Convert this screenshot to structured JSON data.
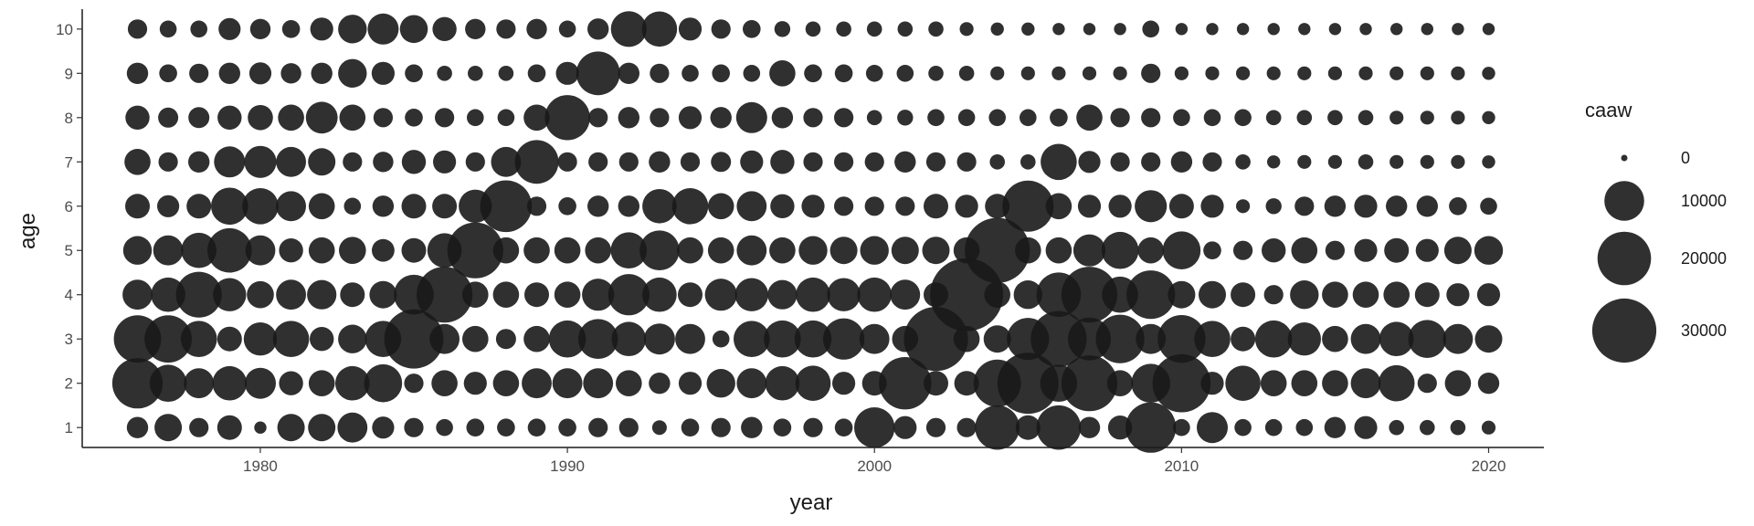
{
  "chart_data": {
    "type": "scatter",
    "subtype": "bubble",
    "xlabel": "year",
    "ylabel": "age",
    "xlim": [
      1974.2,
      2021.8
    ],
    "ylim": [
      0.55,
      10.45
    ],
    "x_ticks": [
      "1980",
      "1990",
      "2000",
      "2010",
      "2020"
    ],
    "y_ticks": [
      "1",
      "2",
      "3",
      "4",
      "5",
      "6",
      "7",
      "8",
      "9",
      "10"
    ],
    "grid": false,
    "point_color": "#1a1a1a",
    "point_alpha": 0.9,
    "size_legend": {
      "title": "caaw",
      "placement": "right",
      "breaks": [
        0,
        10000,
        20000,
        30000
      ],
      "labels": [
        "0",
        "10000",
        "20000",
        "30000"
      ]
    },
    "years": [
      1976,
      1977,
      1978,
      1979,
      1980,
      1981,
      1982,
      1983,
      1984,
      1985,
      1986,
      1987,
      1988,
      1989,
      1990,
      1991,
      1992,
      1993,
      1994,
      1995,
      1996,
      1997,
      1998,
      1999,
      2000,
      2001,
      2002,
      2003,
      2004,
      2005,
      2006,
      2007,
      2008,
      2009,
      2010,
      2011,
      2012,
      2013,
      2014,
      2015,
      2016,
      2017,
      2018,
      2019,
      2020
    ],
    "ages": [
      1,
      2,
      3,
      4,
      5,
      6,
      7,
      8,
      9,
      10
    ],
    "caaw_by_age": [
      [
        2000,
        4000,
        1500,
        3000,
        300,
        4000,
        4000,
        5000,
        2200,
        1500,
        1000,
        1200,
        1200,
        1200,
        1200,
        1500,
        1500,
        600,
        1200,
        1500,
        2000,
        1200,
        1500,
        1200,
        10500,
        2500,
        1500,
        1500,
        13000,
        3000,
        13000,
        2000,
        2800,
        17500,
        1000,
        5500,
        1000,
        1000,
        1000,
        2000,
        2500,
        700,
        700,
        700,
        500
      ],
      [
        17500,
        8500,
        5000,
        7000,
        5500,
        2800,
        3500,
        7000,
        9000,
        1500,
        3500,
        2500,
        3500,
        5000,
        5000,
        5000,
        3500,
        2000,
        2500,
        4500,
        5000,
        7000,
        7500,
        2500,
        3000,
        19000,
        3000,
        3000,
        15000,
        27000,
        8500,
        22000,
        3500,
        9500,
        24000,
        2500,
        7500,
        3500,
        3500,
        3500,
        5000,
        8000,
        1500,
        3500,
        2000
      ],
      [
        15000,
        15000,
        8000,
        3000,
        6500,
        8000,
        2800,
        4500,
        8000,
        25000,
        5000,
        3500,
        1700,
        3500,
        8500,
        10000,
        7000,
        5500,
        5000,
        1000,
        8000,
        8500,
        8500,
        11000,
        5000,
        3500,
        30000,
        3500,
        4000,
        11500,
        22000,
        12000,
        16000,
        5000,
        15500,
        8000,
        3000,
        8500,
        6500,
        3500,
        5000,
        7000,
        9000,
        5000,
        4000
      ],
      [
        5000,
        7000,
        14000,
        6500,
        3800,
        5000,
        4800,
        3000,
        4000,
        10000,
        22000,
        3500,
        3500,
        3000,
        3500,
        6000,
        11000,
        7000,
        3000,
        6000,
        6500,
        4800,
        7000,
        6500,
        7000,
        5000,
        3000,
        40000,
        3500,
        4500,
        13000,
        22000,
        8000,
        16000,
        4000,
        4000,
        3000,
        1500,
        4500,
        3500,
        3500,
        3500,
        3000,
        2500,
        2500
      ],
      [
        4500,
        5000,
        7500,
        13000,
        5000,
        2800,
        3500,
        3800,
        2400,
        3000,
        7000,
        22000,
        3500,
        3500,
        3500,
        3500,
        8000,
        10000,
        3500,
        3500,
        5000,
        3500,
        4500,
        4000,
        4500,
        4000,
        4000,
        3500,
        31000,
        3500,
        3500,
        6000,
        8500,
        3500,
        9000,
        1200,
        1500,
        2800,
        3500,
        1500,
        2500,
        3000,
        2500,
        4000,
        4500
      ],
      [
        3000,
        2200,
        3000,
        8500,
        8000,
        5000,
        3500,
        1000,
        2000,
        3000,
        3000,
        6500,
        18500,
        1500,
        1200,
        2000,
        2000,
        7000,
        8000,
        3500,
        5000,
        2800,
        2500,
        1500,
        1500,
        1500,
        3000,
        2500,
        3000,
        18000,
        3500,
        2500,
        2500,
        6000,
        3000,
        2500,
        500,
        800,
        1500,
        2000,
        2500,
        2000,
        2000,
        1200,
        1000
      ],
      [
        3500,
        1500,
        2000,
        5500,
        6000,
        5000,
        4000,
        1500,
        1800,
        2800,
        2500,
        1500,
        5000,
        12500,
        1500,
        1500,
        1500,
        2000,
        1500,
        1700,
        2500,
        2800,
        1500,
        1500,
        1500,
        2000,
        1500,
        1500,
        700,
        700,
        8000,
        2200,
        1500,
        1500,
        2000,
        1500,
        700,
        400,
        500,
        500,
        700,
        500,
        500,
        500,
        400
      ],
      [
        2800,
        1700,
        1900,
        2800,
        3200,
        3500,
        5800,
        3500,
        1500,
        1200,
        1500,
        1000,
        1000,
        3500,
        13500,
        1500,
        2000,
        1500,
        2500,
        2000,
        5500,
        2000,
        1500,
        1500,
        700,
        800,
        1000,
        1000,
        1000,
        1000,
        1200,
        3500,
        1500,
        1500,
        1000,
        1000,
        1000,
        700,
        700,
        700,
        700,
        500,
        500,
        500,
        400
      ],
      [
        2000,
        1200,
        1500,
        2000,
        2200,
        1800,
        2000,
        4500,
        2500,
        1200,
        700,
        700,
        700,
        1200,
        2500,
        12500,
        2000,
        1500,
        1000,
        1200,
        1000,
        3500,
        1200,
        1200,
        1000,
        1000,
        700,
        700,
        500,
        500,
        500,
        500,
        500,
        1500,
        500,
        500,
        500,
        500,
        500,
        500,
        500,
        500,
        500,
        500,
        400
      ],
      [
        1500,
        1000,
        1000,
        2200,
        1800,
        1200,
        2500,
        4500,
        5500,
        4200,
        2800,
        1800,
        1500,
        1800,
        1000,
        2000,
        7800,
        7500,
        2500,
        1500,
        1200,
        800,
        700,
        700,
        700,
        700,
        700,
        500,
        400,
        400,
        300,
        300,
        300,
        1000,
        300,
        300,
        300,
        300,
        300,
        300,
        300,
        300,
        300,
        300,
        300
      ]
    ]
  }
}
